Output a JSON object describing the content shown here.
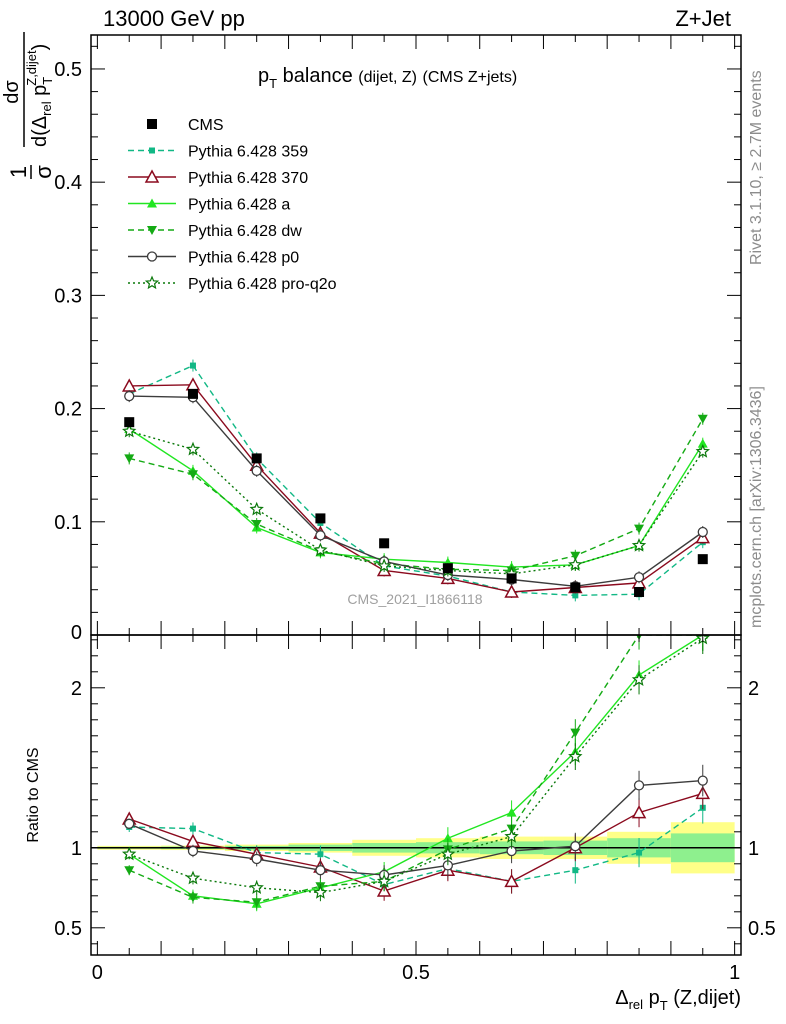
{
  "header": {
    "left": "13000 GeV pp",
    "right": "Z+Jet"
  },
  "plot_title": {
    "main": "p",
    "main_sub": "T",
    "main_tail": " balance",
    "small": "(dijet, Z)",
    "source": "(CMS Z+jets)"
  },
  "watermark": "CMS_2021_I1866118",
  "side_text": {
    "rivet": "Rivet 3.1.10, ≥ 2.7M events",
    "mcplots": "mcplots.cern.ch [arXiv:1306.3436]"
  },
  "ylabel_main": {
    "frac_num": "1",
    "frac_den": "σ",
    "d_num": "dσ",
    "d_den": "d(Δ",
    "d_den_sub": "rel",
    "d_den_p": " p",
    "d_den_p_sub": "T",
    "d_den_p_sup": "Z,dijet",
    "d_den_close": ")"
  },
  "ylabel_ratio": "Ratio to CMS",
  "xlabel": {
    "delta": "Δ",
    "delta_sub": "rel",
    "p": " p",
    "p_sub": "T",
    "tail": " (Z,dijet)"
  },
  "legend": [
    {
      "label": "CMS",
      "color": "#000000",
      "marker": "square",
      "line": "none"
    },
    {
      "label": "Pythia 6.428 359",
      "color": "#11b885",
      "marker": "smallsquare",
      "line": "dashed"
    },
    {
      "label": "Pythia 6.428 370",
      "color": "#8b0a1e",
      "marker": "triangle-open",
      "line": "solid"
    },
    {
      "label": "Pythia 6.428 a",
      "color": "#21e621",
      "marker": "triangle",
      "line": "solid"
    },
    {
      "label": "Pythia 6.428 dw",
      "color": "#14aa14",
      "marker": "triangle-down",
      "line": "dashed"
    },
    {
      "label": "Pythia 6.428 p0",
      "color": "#3c3c3c",
      "marker": "circle-open",
      "line": "solid"
    },
    {
      "label": "Pythia 6.428 pro-q2o",
      "color": "#0a780a",
      "marker": "star",
      "line": "dotted"
    }
  ],
  "chart_data": [
    {
      "type": "line",
      "panel": "main",
      "x": [
        0.05,
        0.15,
        0.25,
        0.35,
        0.45,
        0.55,
        0.65,
        0.75,
        0.85,
        0.95
      ],
      "xlim": [
        -0.01,
        1.01
      ],
      "ylim": [
        0,
        0.53
      ],
      "yticks": [
        "0",
        "0.1",
        "0.2",
        "0.3",
        "0.4",
        "0.5"
      ],
      "xticks": [
        "0",
        "0.5",
        "1"
      ],
      "series": [
        {
          "name": "CMS",
          "values": [
            0.188,
            0.213,
            0.156,
            0.103,
            0.081,
            0.059,
            0.05,
            0.042,
            0.038,
            0.067
          ]
        },
        {
          "name": "Pythia 6.428 359",
          "values": [
            0.213,
            0.238,
            0.156,
            0.099,
            0.061,
            0.052,
            0.038,
            0.035,
            0.036,
            0.082
          ]
        },
        {
          "name": "Pythia 6.428 370",
          "values": [
            0.22,
            0.221,
            0.15,
            0.09,
            0.057,
            0.05,
            0.038,
            0.042,
            0.046,
            0.086
          ]
        },
        {
          "name": "Pythia 6.428 a",
          "values": [
            0.182,
            0.145,
            0.095,
            0.073,
            0.067,
            0.064,
            0.06,
            0.062,
            0.079,
            0.169
          ]
        },
        {
          "name": "Pythia 6.428 dw",
          "values": [
            0.156,
            0.142,
            0.098,
            0.074,
            0.063,
            0.058,
            0.057,
            0.07,
            0.094,
            0.191
          ]
        },
        {
          "name": "Pythia 6.428 p0",
          "values": [
            0.211,
            0.21,
            0.145,
            0.088,
            0.065,
            0.053,
            0.049,
            0.043,
            0.051,
            0.091
          ]
        },
        {
          "name": "Pythia 6.428 pro-q2o",
          "values": [
            0.18,
            0.164,
            0.111,
            0.075,
            0.061,
            0.057,
            0.054,
            0.062,
            0.079,
            0.162
          ]
        }
      ]
    },
    {
      "type": "line",
      "panel": "ratio",
      "x": [
        0.05,
        0.15,
        0.25,
        0.35,
        0.45,
        0.55,
        0.65,
        0.75,
        0.85,
        0.95
      ],
      "xlim": [
        -0.01,
        1.01
      ],
      "ylim": [
        0.33,
        2.33
      ],
      "yticks": [
        "0.5",
        "1",
        "2"
      ],
      "xticks": [
        "0",
        "0.5",
        "1"
      ],
      "band_edges": [
        0.0,
        0.1,
        0.2,
        0.3,
        0.4,
        0.5,
        0.6,
        0.7,
        0.8,
        0.9,
        1.0
      ],
      "band_yellow": [
        0.012,
        0.014,
        0.02,
        0.03,
        0.05,
        0.06,
        0.07,
        0.07,
        0.1,
        0.16
      ],
      "band_green": [
        0.006,
        0.008,
        0.012,
        0.02,
        0.03,
        0.035,
        0.04,
        0.045,
        0.06,
        0.09
      ],
      "series": [
        {
          "name": "Pythia 6.428 359",
          "values": [
            1.13,
            1.12,
            0.97,
            0.96,
            0.77,
            0.87,
            0.79,
            0.86,
            0.97,
            1.25
          ]
        },
        {
          "name": "Pythia 6.428 370",
          "values": [
            1.18,
            1.04,
            0.96,
            0.88,
            0.73,
            0.86,
            0.79,
            1.0,
            1.22,
            1.34
          ]
        },
        {
          "name": "Pythia 6.428 a",
          "values": [
            0.96,
            0.7,
            0.65,
            0.75,
            0.85,
            1.06,
            1.22,
            1.6,
            2.08,
            2.33
          ]
        },
        {
          "name": "Pythia 6.428 dw",
          "values": [
            0.86,
            0.69,
            0.66,
            0.76,
            0.79,
            0.99,
            1.12,
            1.72,
            2.33,
            2.33
          ]
        },
        {
          "name": "Pythia 6.428 p0",
          "values": [
            1.15,
            0.98,
            0.93,
            0.86,
            0.83,
            0.89,
            0.98,
            1.01,
            1.39,
            1.42
          ]
        },
        {
          "name": "Pythia 6.428 pro-q2o",
          "values": [
            0.96,
            0.81,
            0.75,
            0.72,
            0.79,
            0.96,
            1.07,
            1.57,
            2.05,
            2.31
          ]
        }
      ]
    }
  ]
}
